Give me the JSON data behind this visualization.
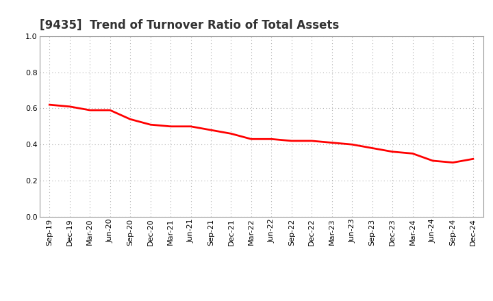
{
  "title": "[9435]  Trend of Turnover Ratio of Total Assets",
  "x_labels": [
    "Sep-19",
    "Dec-19",
    "Mar-20",
    "Jun-20",
    "Sep-20",
    "Dec-20",
    "Mar-21",
    "Jun-21",
    "Sep-21",
    "Dec-21",
    "Mar-22",
    "Jun-22",
    "Sep-22",
    "Dec-22",
    "Mar-23",
    "Jun-23",
    "Sep-23",
    "Dec-23",
    "Mar-24",
    "Jun-24",
    "Sep-24",
    "Dec-24"
  ],
  "y_values": [
    0.62,
    0.61,
    0.59,
    0.59,
    0.54,
    0.51,
    0.5,
    0.5,
    0.48,
    0.46,
    0.43,
    0.43,
    0.42,
    0.42,
    0.41,
    0.4,
    0.38,
    0.36,
    0.35,
    0.31,
    0.3,
    0.32
  ],
  "ylim": [
    0.0,
    1.0
  ],
  "yticks": [
    0.0,
    0.2,
    0.4,
    0.6,
    0.8,
    1.0
  ],
  "line_color": "#ff0000",
  "line_width": 2.0,
  "bg_color": "#ffffff",
  "grid_color": "#b0b0b0",
  "title_fontsize": 12,
  "tick_fontsize": 8
}
